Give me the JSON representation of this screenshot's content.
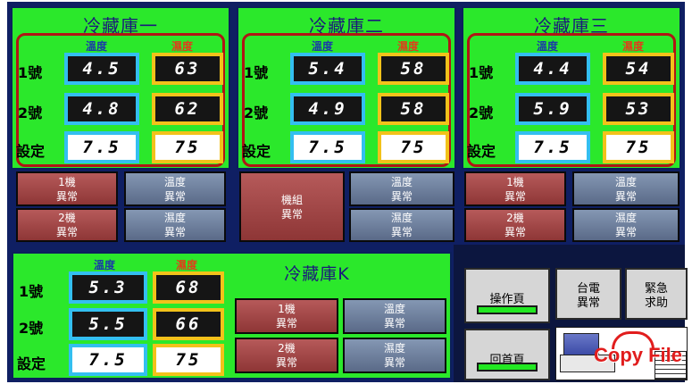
{
  "rooms": [
    {
      "title": "冷藏庫一",
      "temp_header": "溫度",
      "hum_header": "濕度",
      "rows": [
        {
          "label": "1號",
          "temp": "4.5",
          "hum": "63"
        },
        {
          "label": "2號",
          "temp": "4.8",
          "hum": "62"
        }
      ],
      "setpoint": {
        "label": "設定",
        "temp": "7.5",
        "hum": "75"
      }
    },
    {
      "title": "冷藏庫二",
      "temp_header": "溫度",
      "hum_header": "濕度",
      "rows": [
        {
          "label": "1號",
          "temp": "5.4",
          "hum": "58"
        },
        {
          "label": "2號",
          "temp": "4.9",
          "hum": "58"
        }
      ],
      "setpoint": {
        "label": "設定",
        "temp": "7.5",
        "hum": "75"
      }
    },
    {
      "title": "冷藏庫三",
      "temp_header": "溫度",
      "hum_header": "濕度",
      "rows": [
        {
          "label": "1號",
          "temp": "4.4",
          "hum": "54"
        },
        {
          "label": "2號",
          "temp": "5.9",
          "hum": "53"
        }
      ],
      "setpoint": {
        "label": "設定",
        "temp": "7.5",
        "hum": "75"
      }
    },
    {
      "title": "冷藏庫K",
      "temp_header": "溫度",
      "hum_header": "濕度",
      "rows": [
        {
          "label": "1號",
          "temp": "5.3",
          "hum": "68"
        },
        {
          "label": "2號",
          "temp": "5.5",
          "hum": "66"
        }
      ],
      "setpoint": {
        "label": "設定",
        "temp": "7.5",
        "hum": "75"
      }
    }
  ],
  "alarms": {
    "machine1": [
      "1機",
      "異常"
    ],
    "machine2": [
      "2機",
      "異常"
    ],
    "unit": [
      "機組",
      "異常"
    ],
    "temp": [
      "溫度",
      "異常"
    ],
    "hum": [
      "濕度",
      "異常"
    ]
  },
  "controls": {
    "operation_page": "操作頁",
    "home_page": "回首頁",
    "power_alarm": [
      "台電",
      "異常"
    ],
    "emergency_help": [
      "緊急",
      "求助"
    ],
    "copy_file": "Copy File"
  },
  "colors": {
    "panel_green": "#2be82b",
    "background_blue": "#0f1f63",
    "temp_border": "#33bff0",
    "hum_border": "#f2c21a",
    "alarm_red": "#8e3636",
    "alarm_gray": "#5a6a88"
  }
}
